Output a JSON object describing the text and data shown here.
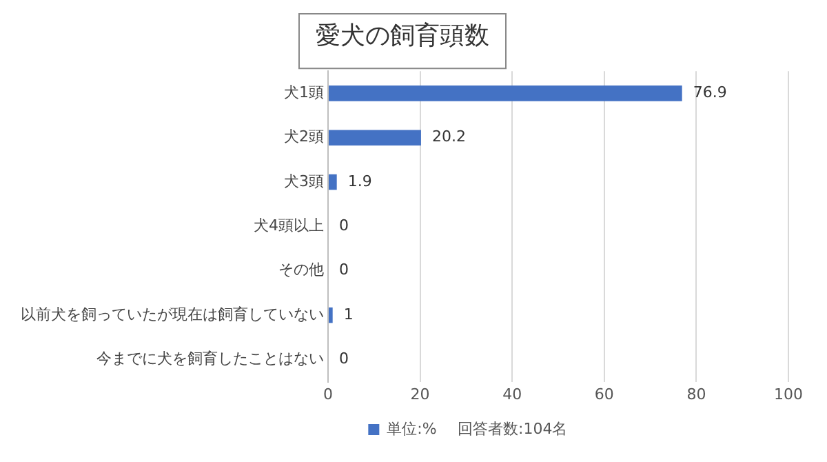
{
  "chart_data": {
    "type": "bar",
    "orientation": "horizontal",
    "title": "愛犬の飼育頭数",
    "categories": [
      "犬1頭",
      "犬2頭",
      "犬3頭",
      "犬4頭以上",
      "その他",
      "以前犬を飼っていたが現在は飼育していない",
      "今までに犬を飼育したことはない"
    ],
    "series": [
      {
        "name": "単位:%",
        "color": "#4472c4",
        "values": [
          76.9,
          20.2,
          1.9,
          0,
          0,
          1,
          0
        ]
      }
    ],
    "xlim": [
      0,
      100
    ],
    "xticks": [
      0,
      20,
      40,
      60,
      80,
      100
    ],
    "grid": "x",
    "legend": "bottom",
    "data_labels": true,
    "annotations": [
      "回答者数:104名"
    ]
  }
}
